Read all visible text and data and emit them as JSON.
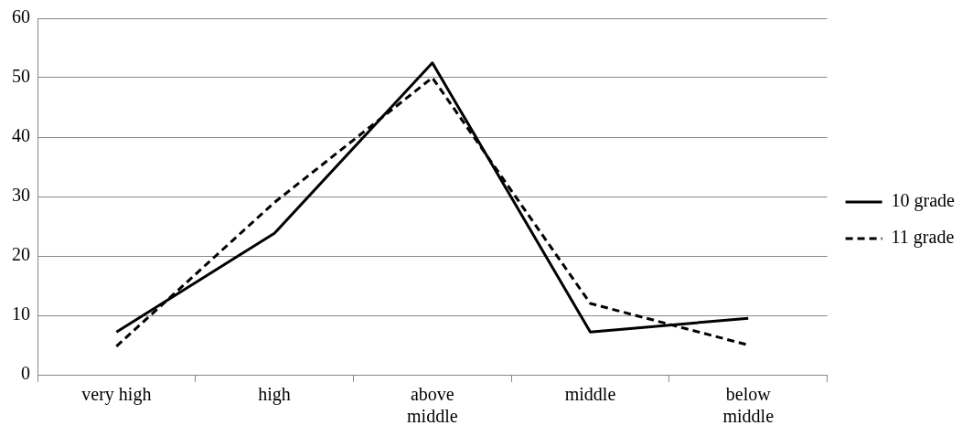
{
  "chart_data": {
    "type": "line",
    "categories": [
      "very high",
      "high",
      "above middle",
      "middle",
      "below middle"
    ],
    "series": [
      {
        "name": "10 grade",
        "color": "#000000",
        "line_style": "solid",
        "values": [
          7.2,
          23.8,
          52.5,
          7.2,
          9.5
        ]
      },
      {
        "name": "11 grade",
        "color": "#000000",
        "line_style": "dashed",
        "values": [
          4.8,
          29,
          50,
          12,
          5
        ]
      }
    ],
    "ylim": [
      0,
      60
    ],
    "yticks": [
      0,
      10,
      20,
      30,
      40,
      50,
      60
    ],
    "grid": "y",
    "legend": "right",
    "marker": "none"
  }
}
